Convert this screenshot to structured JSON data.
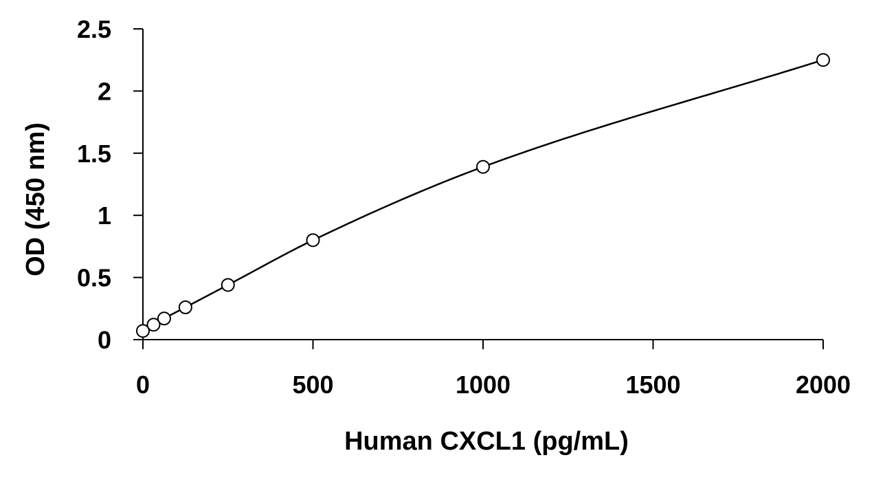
{
  "chart_data": {
    "type": "scatter",
    "title": "",
    "xlabel": "Human CXCL1 (pg/mL)",
    "ylabel": "OD (450 nm)",
    "xlim": [
      0,
      2000
    ],
    "ylim": [
      0,
      2.5
    ],
    "x_ticks": [
      "0",
      "500",
      "1000",
      "1500",
      "2000"
    ],
    "y_ticks": [
      "0",
      "0.5",
      "1",
      "1.5",
      "2",
      "2.5"
    ],
    "grid": false,
    "legend": "none",
    "marker": "open-circle",
    "fit_line": true,
    "series": [
      {
        "x": [
          0,
          31.25,
          62.5,
          125,
          250,
          500,
          1000,
          2000
        ],
        "y": [
          0.07,
          0.12,
          0.17,
          0.26,
          0.44,
          0.8,
          1.39,
          2.25
        ]
      }
    ],
    "colors": {
      "line": "#000000",
      "marker_stroke": "#000000",
      "marker_fill": "#ffffff"
    }
  }
}
